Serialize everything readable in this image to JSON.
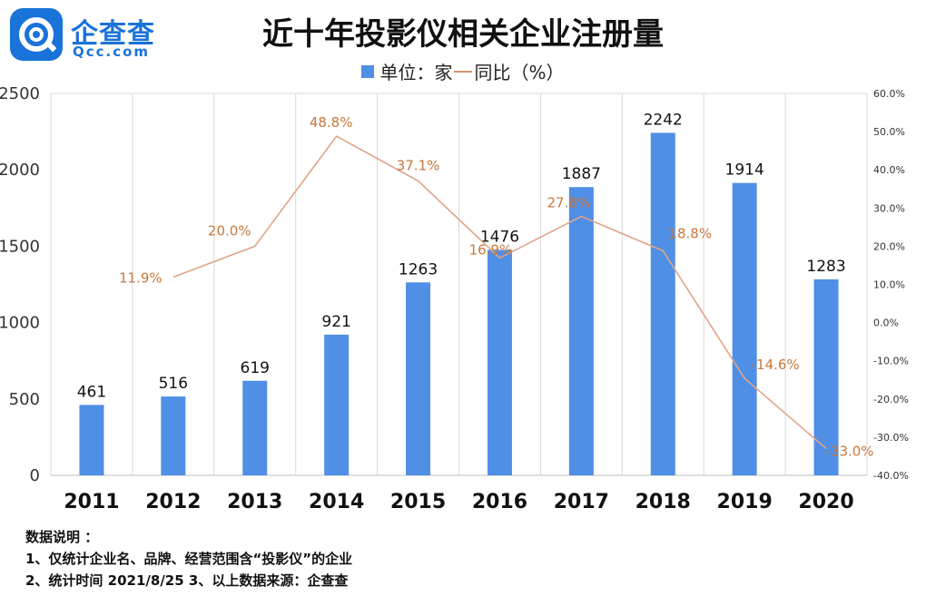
{
  "logo": {
    "name_cn": "企查查",
    "name_en": "Qcc.com"
  },
  "chart_data": {
    "type": "bar",
    "title": "近十年投影仪相关企业注册量",
    "categories": [
      "2011",
      "2012",
      "2013",
      "2014",
      "2015",
      "2016",
      "2017",
      "2018",
      "2019",
      "2020"
    ],
    "series": [
      {
        "name": "单位：家",
        "type": "bar",
        "color": "#4f8fe6",
        "values": [
          461,
          516,
          619,
          921,
          1263,
          1476,
          1887,
          2242,
          1914,
          1283
        ],
        "labels": [
          "461",
          "516",
          "619",
          "921",
          "1263",
          "1476",
          "1887",
          "2242",
          "1914",
          "1283"
        ]
      },
      {
        "name": "同比（%）",
        "type": "line",
        "color": "#d99070",
        "axis": "right",
        "values": [
          null,
          11.9,
          20.0,
          48.8,
          37.1,
          16.9,
          27.8,
          18.8,
          -14.6,
          -33.0
        ],
        "labels": [
          "",
          "11.9%",
          "20.0%",
          "48.8%",
          "37.1%",
          "16.9%",
          "27.8%",
          "18.8%",
          "-14.6%",
          "-33.0%"
        ]
      }
    ],
    "y_left": {
      "range": [
        0,
        2500
      ],
      "ticks": [
        0,
        500,
        1000,
        1500,
        2000,
        2500
      ],
      "tick_labels": [
        "0",
        "500",
        "1000",
        "1500",
        "2000",
        "2500"
      ]
    },
    "y_right": {
      "range": [
        -40,
        60
      ],
      "ticks": [
        -40,
        -30,
        -20,
        -10,
        0,
        10,
        20,
        30,
        40,
        50,
        60
      ],
      "tick_labels": [
        "-40.0%",
        "-30.0%",
        "-20.0%",
        "-10.0%",
        "0.0%",
        "10.0%",
        "20.0%",
        "30.0%",
        "40.0%",
        "50.0%",
        "60.0%"
      ]
    },
    "grid": "vertical",
    "legend": "top-center"
  },
  "legend": {
    "bar_label": "单位：家",
    "line_label": "同比（%）"
  },
  "notes": {
    "heading": "数据说明 ：",
    "line1": "1、仅统计企业名、品牌、经营范围含“投影仪”的企业",
    "line2": "2、统计时间 2021/8/25    3、以上数据来源：企查查"
  }
}
